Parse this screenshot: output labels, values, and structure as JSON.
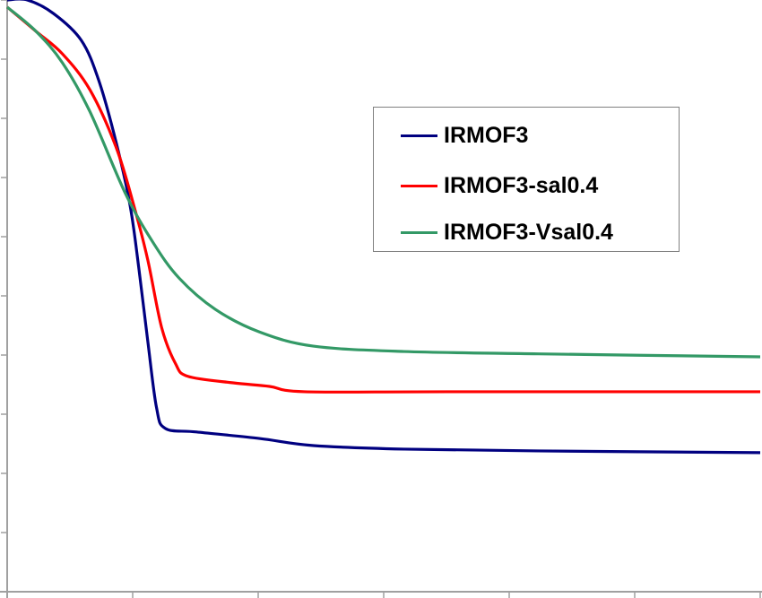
{
  "chart_data": {
    "type": "line",
    "title": "",
    "xlabel": "",
    "ylabel": "",
    "xlim": [
      0,
      6
    ],
    "ylim": [
      0,
      10
    ],
    "x_ticks": 7,
    "y_ticks": 11,
    "tick_labels_shown": false,
    "grid": false,
    "legend": "center-right",
    "series": [
      {
        "name": "IRMOF3",
        "color": "#000080",
        "points": [
          [
            0,
            10
          ],
          [
            0.16,
            10
          ],
          [
            0.37,
            9.77
          ],
          [
            0.59,
            9.32
          ],
          [
            0.73,
            8.64
          ],
          [
            0.87,
            7.58
          ],
          [
            0.98,
            6.52
          ],
          [
            1.05,
            5.45
          ],
          [
            1.12,
            4.24
          ],
          [
            1.19,
            3.11
          ],
          [
            1.26,
            2.76
          ],
          [
            1.51,
            2.7
          ],
          [
            2.01,
            2.59
          ],
          [
            2.44,
            2.47
          ],
          [
            3.16,
            2.41
          ],
          [
            4.23,
            2.38
          ],
          [
            6,
            2.35
          ]
        ]
      },
      {
        "name": "IRMOF3-sal0.4",
        "color": "#ff0000",
        "points": [
          [
            0,
            9.88
          ],
          [
            0.23,
            9.47
          ],
          [
            0.44,
            9.09
          ],
          [
            0.66,
            8.48
          ],
          [
            0.87,
            7.5
          ],
          [
            1.01,
            6.52
          ],
          [
            1.12,
            5.61
          ],
          [
            1.23,
            4.47
          ],
          [
            1.34,
            3.86
          ],
          [
            1.44,
            3.64
          ],
          [
            1.8,
            3.53
          ],
          [
            2.09,
            3.47
          ],
          [
            2.37,
            3.38
          ],
          [
            3.51,
            3.38
          ],
          [
            6,
            3.38
          ]
        ]
      },
      {
        "name": "IRMOF3-Vsal0.4",
        "color": "#339966",
        "points": [
          [
            0,
            9.88
          ],
          [
            0.23,
            9.47
          ],
          [
            0.44,
            8.94
          ],
          [
            0.66,
            8.11
          ],
          [
            0.94,
            6.74
          ],
          [
            1.16,
            5.91
          ],
          [
            1.37,
            5.3
          ],
          [
            1.66,
            4.77
          ],
          [
            2.01,
            4.39
          ],
          [
            2.44,
            4.15
          ],
          [
            3.16,
            4.06
          ],
          [
            4.23,
            4.02
          ],
          [
            6,
            3.97
          ]
        ]
      }
    ]
  }
}
